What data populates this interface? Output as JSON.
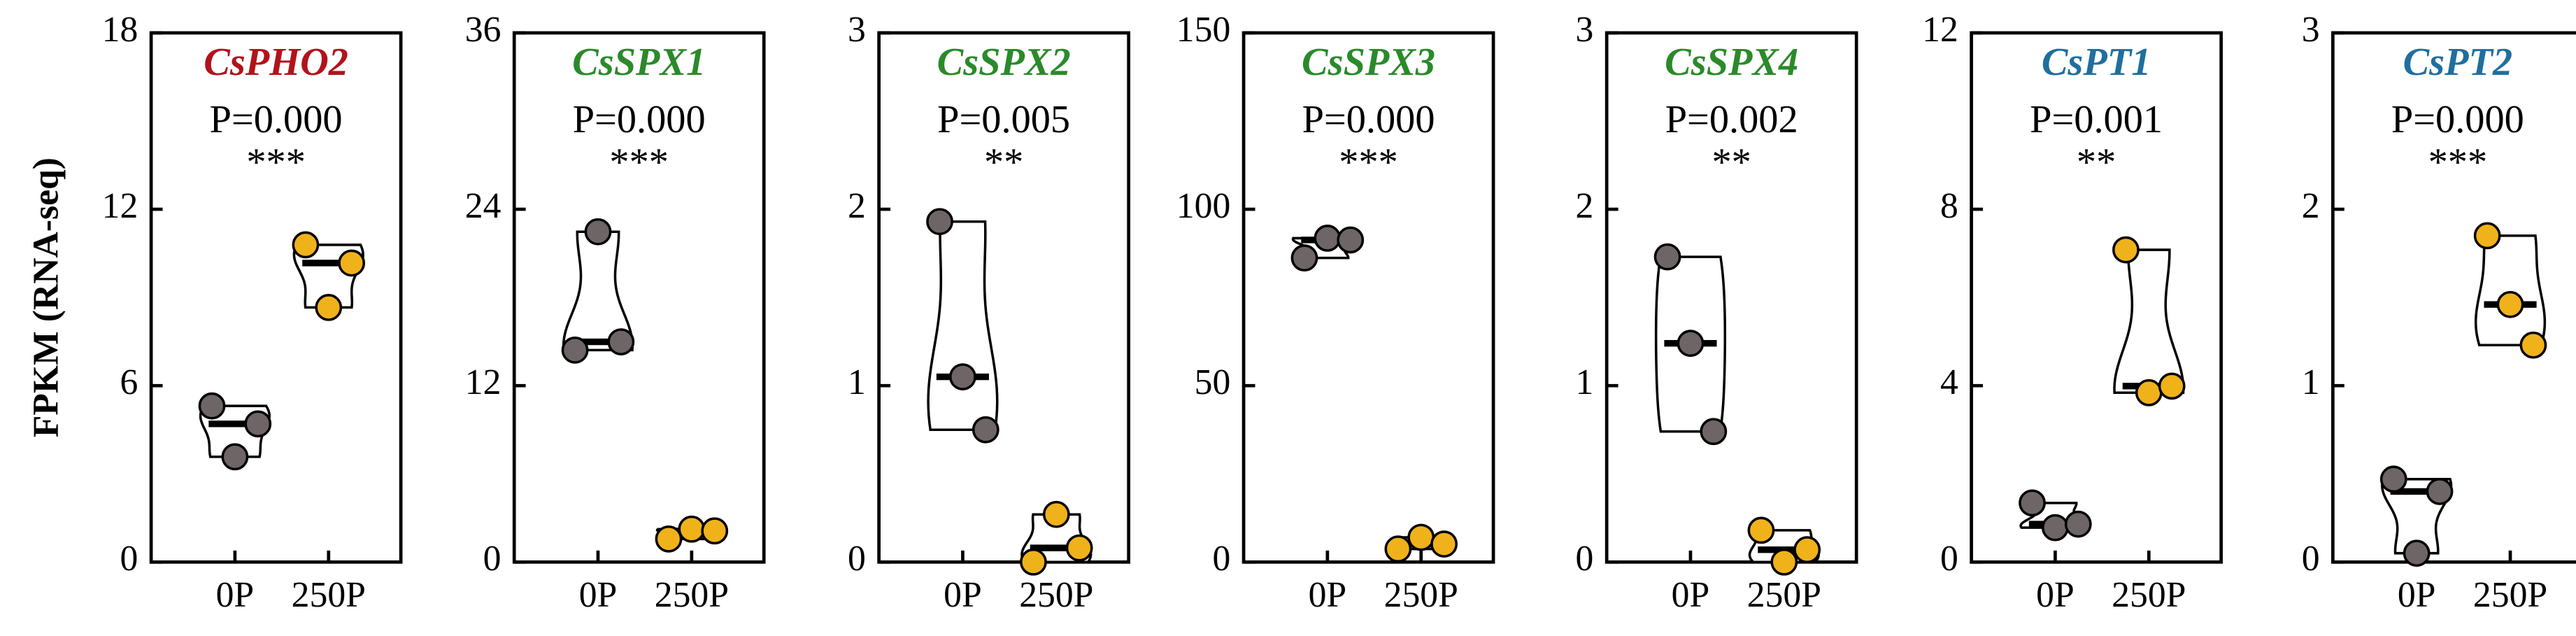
{
  "chart_data": [
    {
      "type": "violin",
      "title": "CsPHO2",
      "title_color": "#b3121b",
      "ylabel": "FPKM (RNA-seq)",
      "annotation": "P=0.000",
      "significance": "***",
      "categories": [
        "0P",
        "250P"
      ],
      "ylim": [
        0,
        18
      ],
      "yticks": [
        0,
        6,
        12,
        18
      ],
      "series": [
        {
          "color": "#6e6566",
          "values": [
            5.31,
            3.58,
            4.7
          ]
        },
        {
          "color": "#f0b21a",
          "values": [
            10.79,
            8.66,
            10.17
          ]
        }
      ]
    },
    {
      "type": "violin",
      "title": "CsSPX1",
      "title_color": "#2a8a2a",
      "annotation": "P=0.000",
      "significance": "***",
      "categories": [
        "0P",
        "250P"
      ],
      "ylim": [
        0,
        36
      ],
      "yticks": [
        0,
        12,
        24,
        36
      ],
      "series": [
        {
          "color": "#6e6566",
          "values": [
            14.42,
            22.47,
            14.98
          ]
        },
        {
          "color": "#f0b21a",
          "values": [
            1.57,
            2.24,
            2.12
          ]
        }
      ]
    },
    {
      "type": "violin",
      "title": "CsSPX2",
      "title_color": "#2a8a2a",
      "annotation": "P=0.005",
      "significance": "**",
      "categories": [
        "0P",
        "250P"
      ],
      "ylim": [
        0,
        3
      ],
      "yticks": [
        0,
        1,
        2,
        3
      ],
      "series": [
        {
          "color": "#6e6566",
          "values": [
            1.93,
            1.05,
            0.75
          ]
        },
        {
          "color": "#f0b21a",
          "values": [
            0.0,
            0.27,
            0.08
          ]
        }
      ]
    },
    {
      "type": "violin",
      "title": "CsSPX3",
      "title_color": "#2a8a2a",
      "annotation": "P=0.000",
      "significance": "***",
      "categories": [
        "0P",
        "250P"
      ],
      "ylim": [
        0,
        150
      ],
      "yticks": [
        0,
        50,
        100,
        150
      ],
      "series": [
        {
          "color": "#6e6566",
          "values": [
            86.2,
            91.8,
            91.3
          ]
        },
        {
          "color": "#f0b21a",
          "values": [
            3.7,
            7.0,
            5.1
          ]
        }
      ]
    },
    {
      "type": "violin",
      "title": "CsSPX4",
      "title_color": "#2a8a2a",
      "annotation": "P=0.002",
      "significance": "**",
      "categories": [
        "0P",
        "250P"
      ],
      "ylim": [
        0,
        3
      ],
      "yticks": [
        0,
        1,
        2,
        3
      ],
      "series": [
        {
          "color": "#6e6566",
          "values": [
            1.73,
            1.24,
            0.74
          ]
        },
        {
          "color": "#f0b21a",
          "values": [
            0.18,
            0.0,
            0.07
          ]
        }
      ]
    },
    {
      "type": "violin",
      "title": "CsPT1",
      "title_color": "#1f6f9e",
      "annotation": "P=0.001",
      "significance": "**",
      "categories": [
        "0P",
        "250P"
      ],
      "ylim": [
        0,
        12
      ],
      "yticks": [
        0,
        4,
        8,
        12
      ],
      "series": [
        {
          "color": "#6e6566",
          "values": [
            1.34,
            0.78,
            0.86
          ]
        },
        {
          "color": "#f0b21a",
          "values": [
            7.08,
            3.84,
            3.99
          ]
        }
      ]
    },
    {
      "type": "violin",
      "title": "CsPT2",
      "title_color": "#1f6f9e",
      "annotation": "P=0.000",
      "significance": "***",
      "categories": [
        "0P",
        "250P"
      ],
      "ylim": [
        0,
        3
      ],
      "yticks": [
        0,
        1,
        2,
        3
      ],
      "series": [
        {
          "color": "#6e6566",
          "values": [
            0.47,
            0.05,
            0.4
          ]
        },
        {
          "color": "#f0b21a",
          "values": [
            1.85,
            1.46,
            1.23
          ]
        }
      ]
    }
  ]
}
